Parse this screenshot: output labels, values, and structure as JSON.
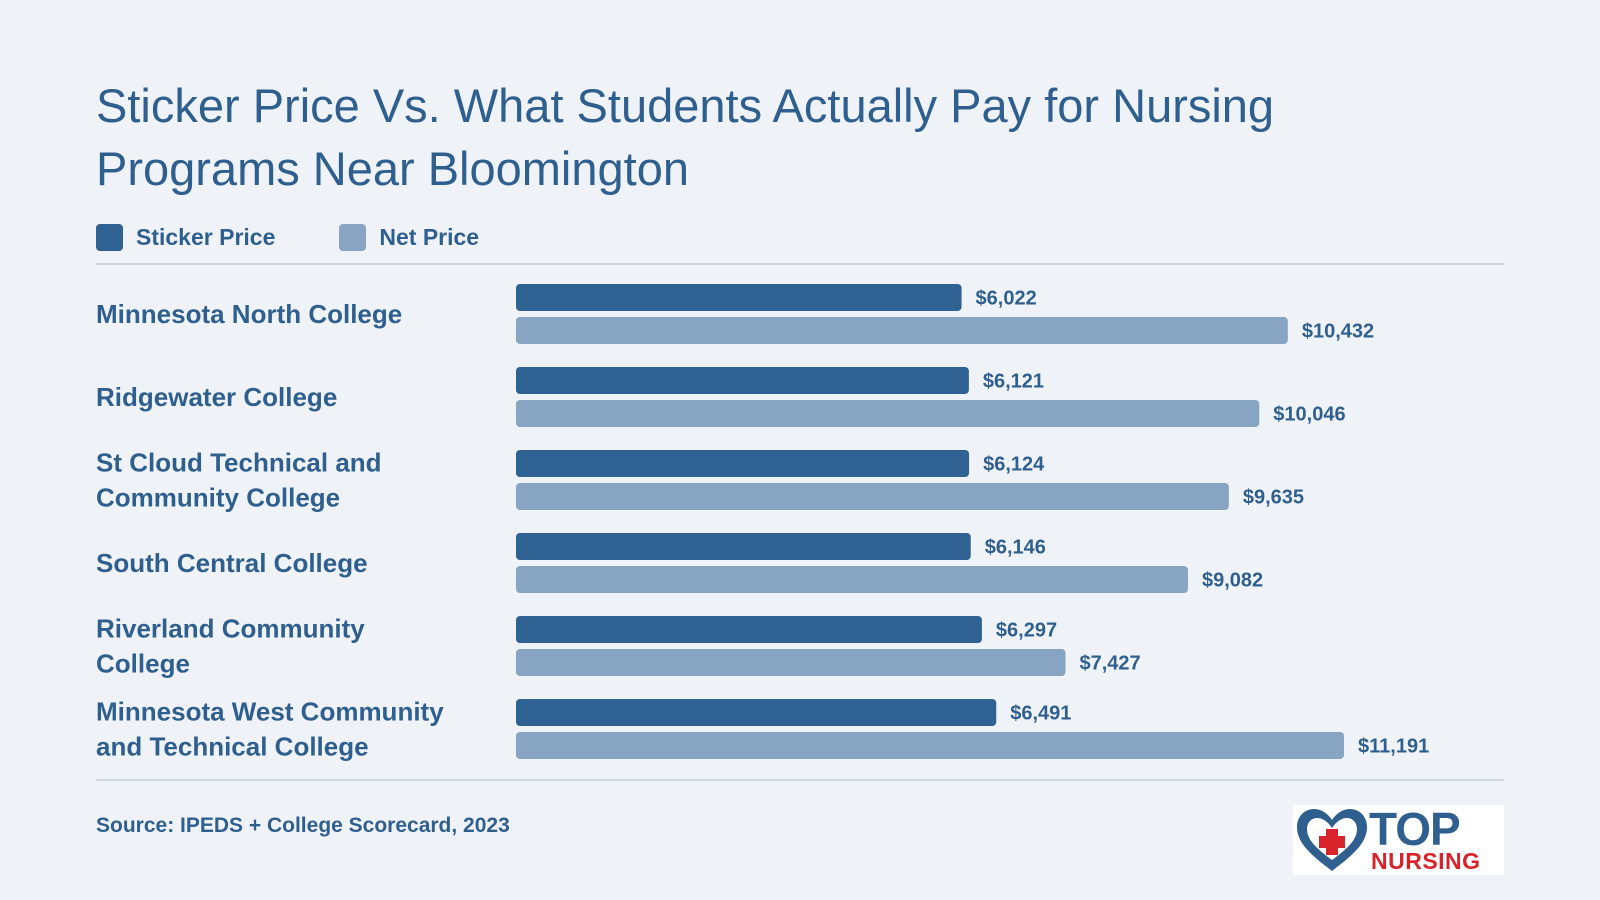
{
  "colors": {
    "sticker": "#2f6192",
    "net": "#87a5c3",
    "text": "#2f5f8f",
    "background": "#eff3f7",
    "logo_red": "#d8232a"
  },
  "legend": {
    "sticker_label": "Sticker Price",
    "net_label": "Net Price"
  },
  "source": "Source: IPEDS + College Scorecard, 2023",
  "logo": {
    "top": "TOP",
    "nursing": "NURSING",
    "icon": "heart-cross-icon"
  },
  "chart_data": {
    "type": "bar",
    "orientation": "horizontal",
    "title": "Sticker Price Vs. What Students Actually Pay for Nursing Programs Near Bloomington",
    "categories": [
      [
        "Minnesota North College"
      ],
      [
        "Ridgewater College"
      ],
      [
        "St Cloud Technical and",
        "Community College"
      ],
      [
        "South Central College"
      ],
      [
        "Riverland Community",
        "College"
      ],
      [
        "Minnesota West Community",
        "and Technical College"
      ]
    ],
    "series": [
      {
        "name": "Sticker Price",
        "values": [
          6022,
          6121,
          6124,
          6146,
          6297,
          6491
        ],
        "labels": [
          "$6,022",
          "$6,121",
          "$6,124",
          "$6,146",
          "$6,297",
          "$6,491"
        ]
      },
      {
        "name": "Net Price",
        "values": [
          10432,
          10046,
          9635,
          9082,
          7427,
          11191
        ],
        "labels": [
          "$10,432",
          "$10,046",
          "$9,635",
          "$9,082",
          "$7,427",
          "$11,191"
        ]
      }
    ],
    "xlim": [
      0,
      11191
    ],
    "legend_position": "top-left",
    "grid": false
  }
}
